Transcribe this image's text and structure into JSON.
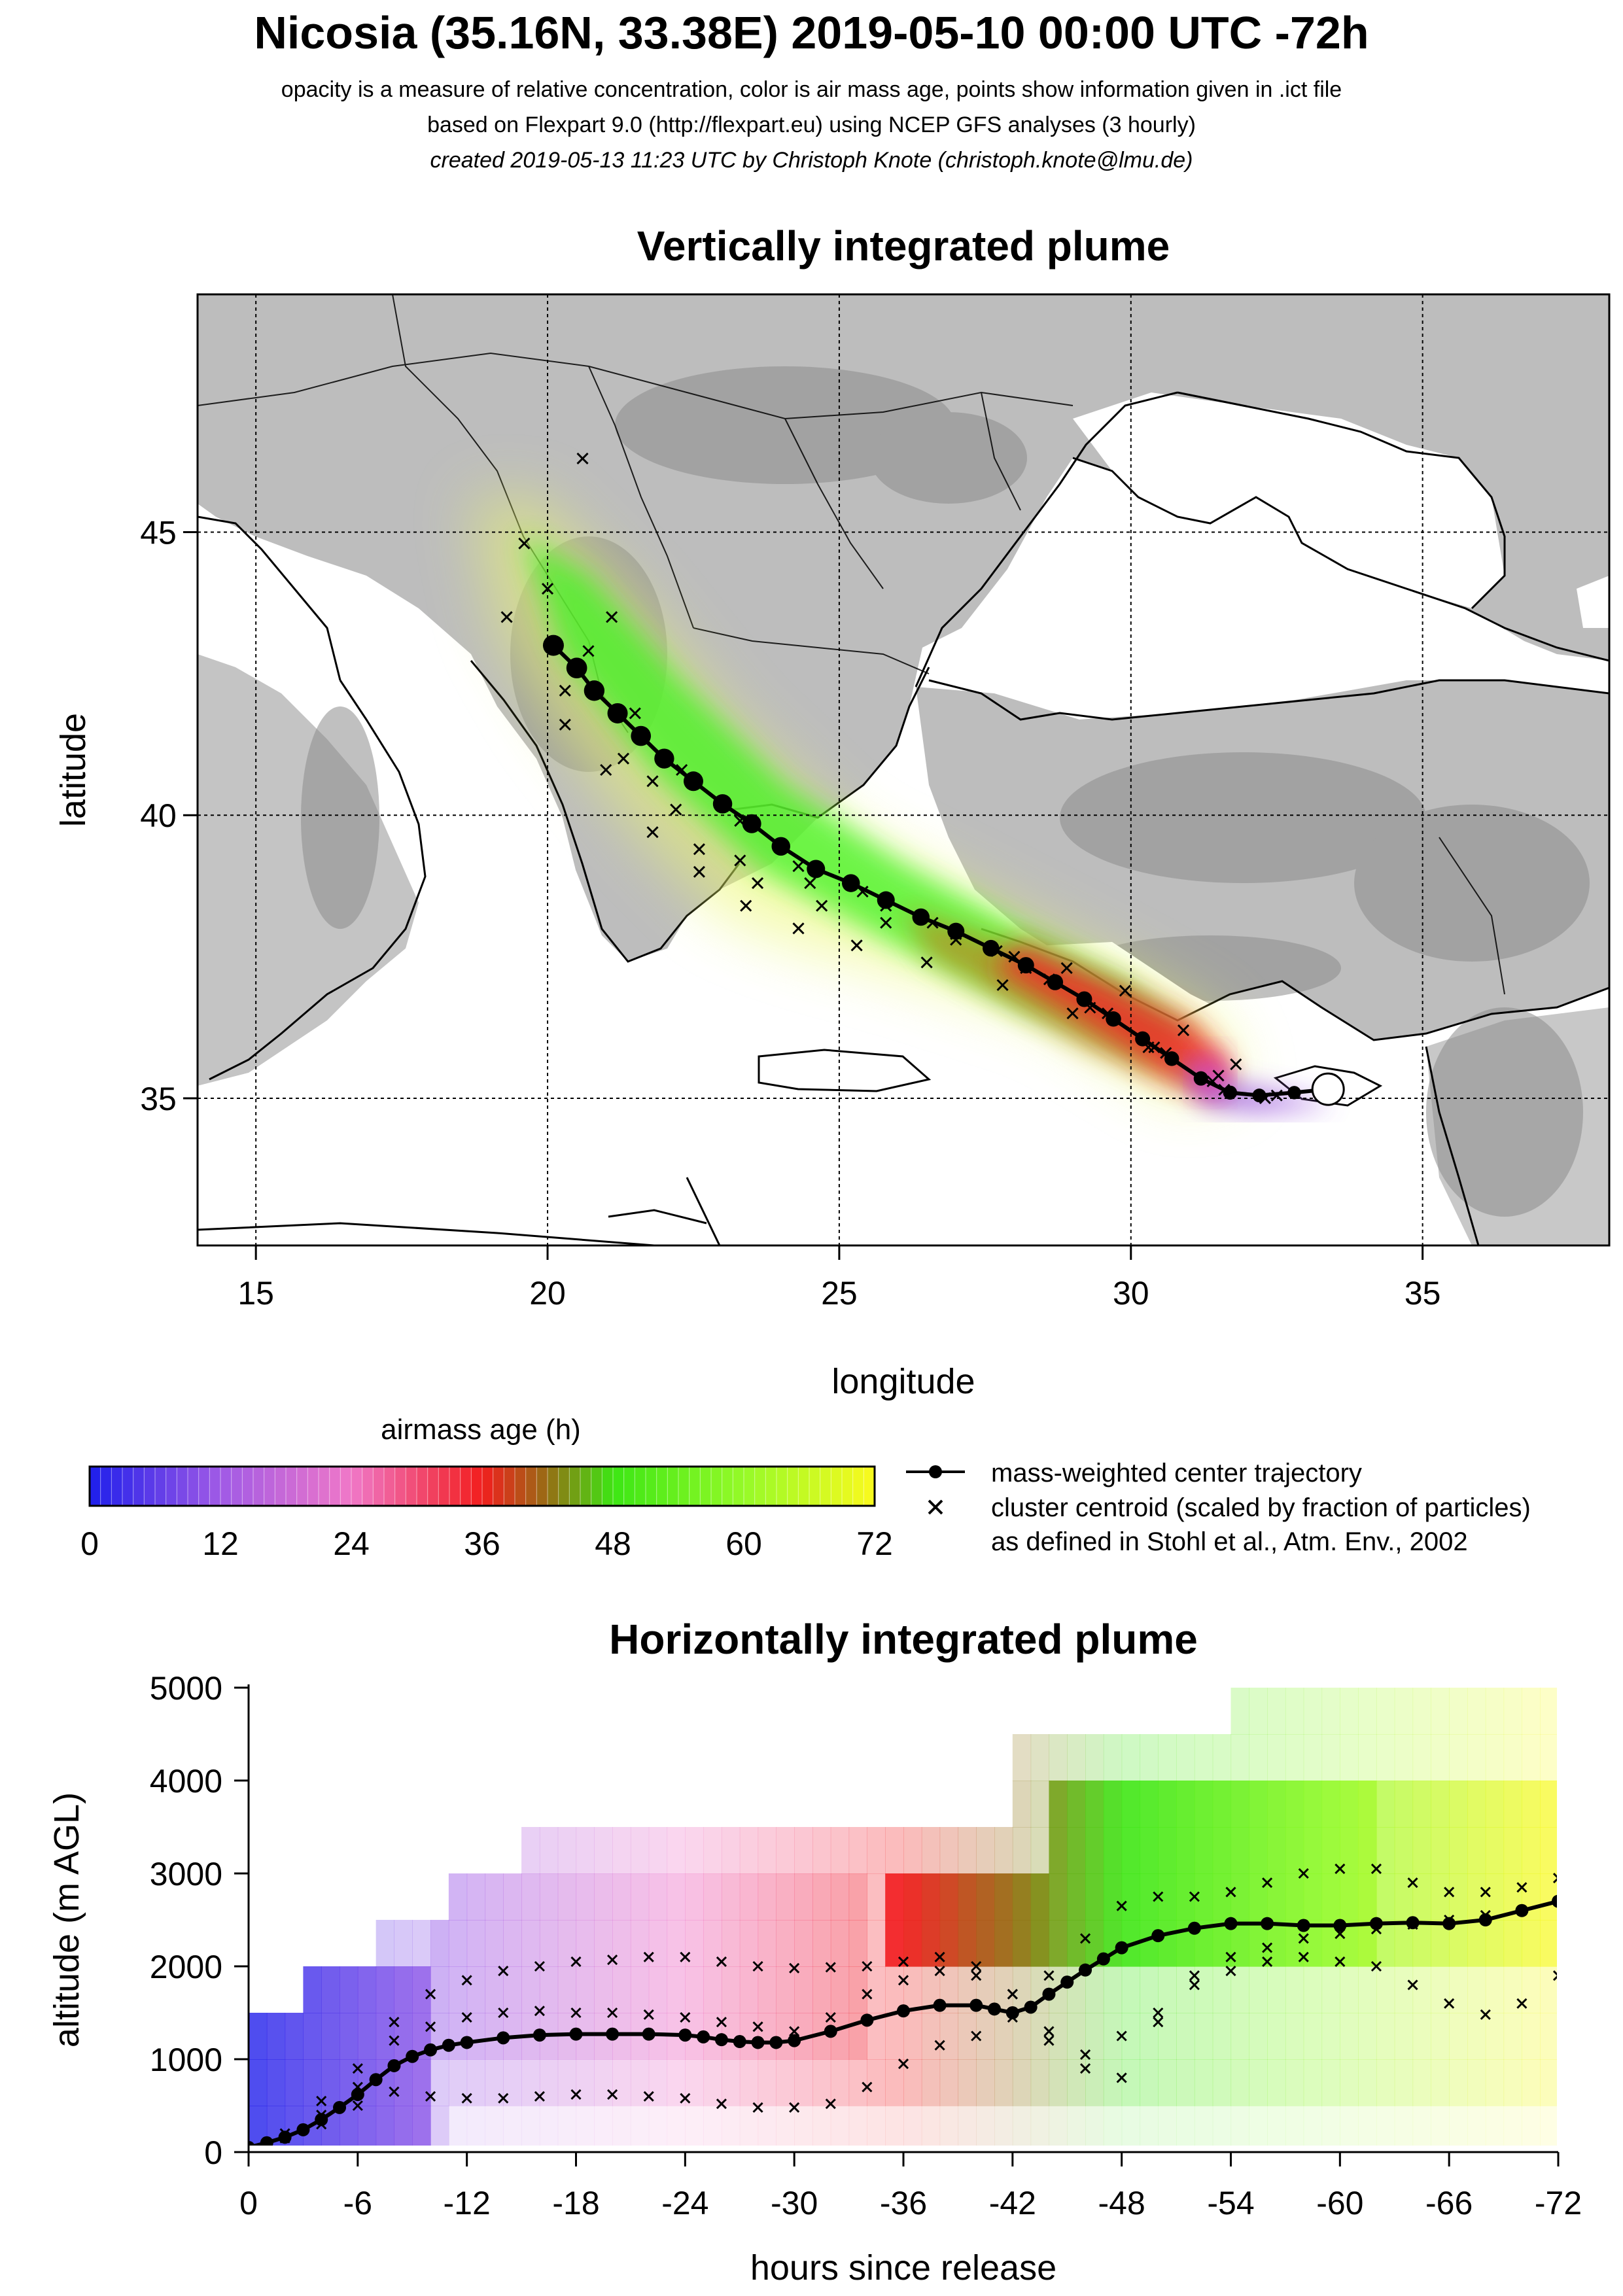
{
  "header": {
    "title": "Nicosia (35.16N, 33.38E) 2019-05-10 00:00 UTC -72h",
    "line1": "opacity is a measure of relative concentration, color is air mass age, points show information given in .ict file",
    "line2": "based on Flexpart 9.0 (http://flexpart.eu) using NCEP GFS analyses (3 hourly)",
    "line3": "created 2019-05-13 11:23 UTC by Christoph Knote (christoph.knote@lmu.de)"
  },
  "colorbar": {
    "title": "airmass age (h)",
    "min": 0,
    "max": 72,
    "ticks": [
      "0",
      "12",
      "24",
      "36",
      "48",
      "60",
      "72"
    ]
  },
  "legend": {
    "center_label": "mass-weighted center trajectory",
    "cluster_label_1": "cluster centroid (scaled by fraction of particles)",
    "cluster_label_2": "as defined in Stohl et al., Atm. Env., 2002"
  },
  "chart_data": [
    {
      "type": "scatter",
      "title": "Vertically integrated plume",
      "xlabel": "longitude",
      "ylabel": "latitude",
      "xlim": [
        14,
        38.2
      ],
      "ylim": [
        32.4,
        49.2
      ],
      "xticks": [
        "15",
        "20",
        "25",
        "30",
        "35"
      ],
      "yticks": [
        "35",
        "40",
        "45"
      ],
      "grid": true,
      "release_point": {
        "lon": 33.38,
        "lat": 35.16
      },
      "center_trajectory": {
        "lon": [
          33.38,
          32.8,
          32.2,
          31.7,
          31.2,
          30.7,
          30.2,
          29.7,
          29.2,
          28.7,
          28.2,
          27.6,
          27.0,
          26.4,
          25.8,
          25.2,
          24.6,
          24.0,
          23.5,
          23.0,
          22.5,
          22.0,
          21.6,
          21.2,
          20.8,
          20.5,
          20.1
        ],
        "lat": [
          35.16,
          35.1,
          35.05,
          35.1,
          35.35,
          35.7,
          36.05,
          36.4,
          36.75,
          37.05,
          37.35,
          37.65,
          37.95,
          38.2,
          38.5,
          38.8,
          39.05,
          39.45,
          39.85,
          40.2,
          40.6,
          41.0,
          41.4,
          41.8,
          42.2,
          42.6,
          43.0
        ],
        "age_h": [
          0,
          3,
          6,
          9,
          12,
          15,
          18,
          21,
          24,
          27,
          30,
          33,
          36,
          39,
          42,
          45,
          48,
          51,
          54,
          57,
          60,
          62,
          64,
          66,
          68,
          70,
          72
        ]
      },
      "clusters": [
        {
          "lon": [
            32.5,
            31.6,
            30.6,
            29.6,
            28.6,
            27.7,
            26.6,
            25.4,
            24.3,
            23.3,
            22.3,
            21.5,
            20.7,
            20.0,
            19.6
          ],
          "lat": [
            35.05,
            35.15,
            35.8,
            36.5,
            37.1,
            37.6,
            38.1,
            38.65,
            39.1,
            39.9,
            40.8,
            41.8,
            42.9,
            44.0,
            44.8
          ]
        },
        {
          "lon": [
            32.3,
            31.4,
            30.4,
            29.3,
            28.2,
            27.0,
            25.8,
            24.5,
            23.3,
            22.2,
            21.3,
            20.3,
            19.3
          ],
          "lat": [
            35.0,
            35.3,
            35.9,
            36.6,
            37.3,
            37.9,
            38.4,
            38.8,
            39.2,
            40.1,
            41.0,
            42.2,
            43.5
          ]
        },
        {
          "lon": [
            31.8,
            30.9,
            29.9,
            28.9,
            28.0,
            27.0,
            25.8,
            24.7,
            23.6,
            22.6,
            21.8,
            21.1,
            20.6
          ],
          "lat": [
            35.6,
            36.2,
            36.9,
            37.3,
            37.5,
            37.8,
            38.1,
            38.4,
            38.8,
            39.4,
            40.6,
            43.5,
            46.3
          ]
        },
        {
          "lon": [
            31.5,
            30.3,
            29.0,
            27.8,
            26.5,
            25.3,
            24.3,
            23.4,
            22.6,
            21.8,
            21.0,
            20.3
          ],
          "lat": [
            35.4,
            35.9,
            36.5,
            37.0,
            37.4,
            37.7,
            38.0,
            38.4,
            39.0,
            39.7,
            40.8,
            41.6
          ]
        }
      ]
    },
    {
      "type": "scatter",
      "title": "Horizontally integrated plume",
      "xlabel": "hours since release",
      "ylabel": "altitude (m AGL)",
      "xlim": [
        0,
        -72
      ],
      "ylim": [
        0,
        5000
      ],
      "xticks": [
        "0",
        "-6",
        "-12",
        "-18",
        "-24",
        "-30",
        "-36",
        "-42",
        "-48",
        "-54",
        "-60",
        "-66",
        "-72"
      ],
      "yticks": [
        "0",
        "1000",
        "2000",
        "3000",
        "4000",
        "5000"
      ],
      "center_trajectory": {
        "hours": [
          0,
          -1,
          -2,
          -3,
          -4,
          -5,
          -6,
          -7,
          -8,
          -9,
          -10,
          -11,
          -12,
          -14,
          -16,
          -18,
          -20,
          -22,
          -24,
          -25,
          -26,
          -27,
          -28,
          -29,
          -30,
          -32,
          -34,
          -36,
          -38,
          -40,
          -41,
          -42,
          -43,
          -44,
          -45,
          -46,
          -47,
          -48,
          -50,
          -52,
          -54,
          -56,
          -58,
          -60,
          -62,
          -64,
          -66,
          -68,
          -70,
          -72
        ],
        "altitude": [
          50,
          100,
          160,
          240,
          350,
          480,
          620,
          780,
          930,
          1030,
          1100,
          1150,
          1180,
          1230,
          1260,
          1270,
          1270,
          1270,
          1260,
          1240,
          1210,
          1190,
          1180,
          1180,
          1200,
          1300,
          1420,
          1520,
          1580,
          1580,
          1540,
          1500,
          1560,
          1700,
          1830,
          1960,
          2080,
          2200,
          2330,
          2410,
          2460,
          2460,
          2440,
          2440,
          2460,
          2470,
          2460,
          2500,
          2600,
          2700
        ]
      },
      "cluster_bands": [
        {
          "hours": [
            -2,
            -4,
            -6,
            -8,
            -10,
            -12,
            -14,
            -16,
            -18,
            -20,
            -22,
            -24,
            -26,
            -28,
            -30,
            -32,
            -34,
            -36,
            -38,
            -40,
            -42,
            -44,
            -46,
            -48,
            -50,
            -52,
            -54,
            -56,
            -58,
            -60,
            -62,
            -64,
            -66,
            -68,
            -70,
            -72
          ],
          "altitude": [
            200,
            550,
            900,
            1400,
            1700,
            1850,
            1950,
            2000,
            2050,
            2070,
            2100,
            2100,
            2050,
            2000,
            1980,
            1990,
            2000,
            2050,
            2100,
            2000,
            1700,
            1900,
            2300,
            2650,
            2750,
            2750,
            2800,
            2900,
            3000,
            3050,
            3050,
            2900,
            2800,
            2800,
            2850,
            2950
          ]
        },
        {
          "hours": [
            -2,
            -4,
            -6,
            -8,
            -10,
            -12,
            -14,
            -16,
            -18,
            -20,
            -22,
            -24,
            -26,
            -28,
            -30,
            -32,
            -34,
            -36,
            -38,
            -40,
            -42,
            -44,
            -46,
            -48,
            -50,
            -52,
            -54,
            -56,
            -58,
            -60,
            -62,
            -64,
            -66,
            -68,
            -70,
            -72
          ],
          "altitude": [
            150,
            400,
            700,
            1200,
            1350,
            1450,
            1500,
            1520,
            1500,
            1500,
            1480,
            1450,
            1400,
            1350,
            1300,
            1450,
            1700,
            1850,
            1950,
            1900,
            1700,
            1300,
            900,
            800,
            1400,
            1900,
            2100,
            2200,
            2300,
            2350,
            2400,
            2450,
            2500,
            2550,
            2600,
            2700
          ]
        },
        {
          "hours": [
            -4,
            -6,
            -8,
            -10,
            -12,
            -14,
            -16,
            -18,
            -20,
            -22,
            -24,
            -26,
            -28,
            -30,
            -32,
            -34,
            -36,
            -38,
            -40,
            -42,
            -44,
            -46,
            -48,
            -50,
            -52,
            -54,
            -56,
            -58,
            -60,
            -62,
            -64,
            -66,
            -68,
            -70,
            -72
          ],
          "altitude": [
            300,
            500,
            650,
            600,
            580,
            580,
            600,
            620,
            620,
            600,
            580,
            520,
            480,
            480,
            520,
            700,
            950,
            1150,
            1250,
            1450,
            1200,
            1050,
            1250,
            1500,
            1800,
            1950,
            2050,
            2100,
            2050,
            2000,
            1800,
            1600,
            1480,
            1600,
            1900
          ]
        }
      ]
    }
  ]
}
